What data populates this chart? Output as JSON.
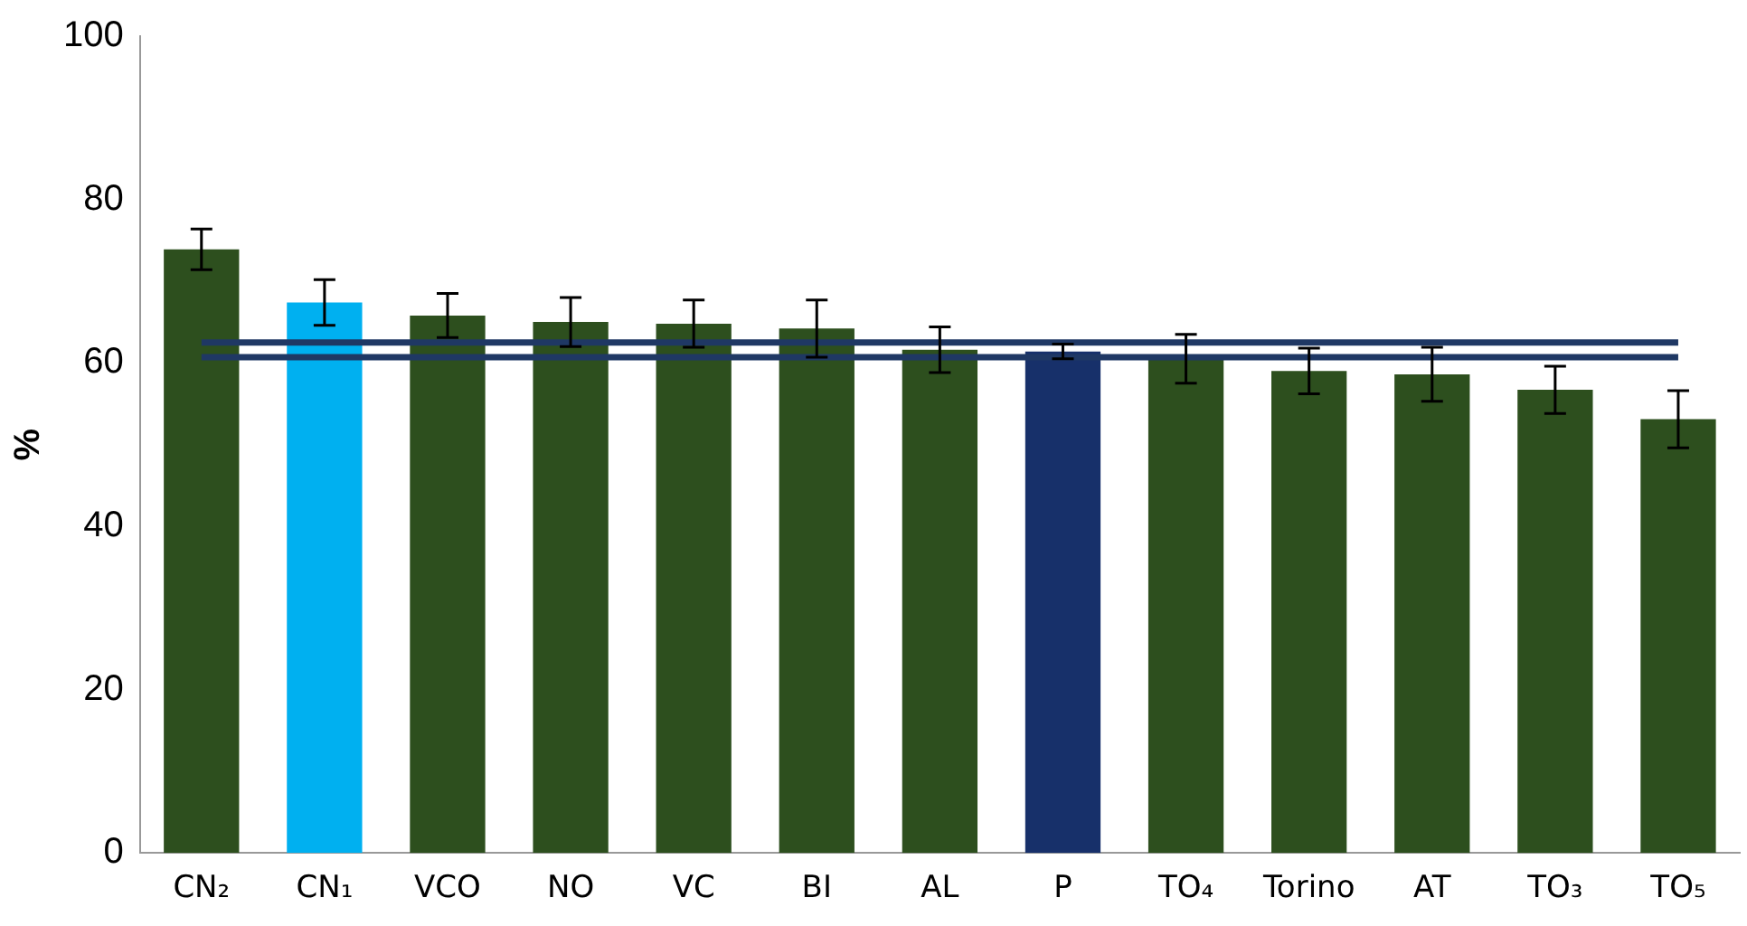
{
  "chart_data": {
    "type": "bar",
    "ylabel": "%",
    "categories": [
      "CN₂",
      "CN₁",
      "VCO",
      "NO",
      "VC",
      "BI",
      "AL",
      "P",
      "TO₄",
      "Torino",
      "AT",
      "TO₃",
      "TO₅"
    ],
    "values": [
      73.9,
      67.4,
      65.8,
      65.0,
      64.8,
      64.2,
      61.6,
      61.4,
      60.5,
      59.0,
      58.6,
      56.7,
      53.1
    ],
    "errors": [
      2.5,
      2.8,
      2.7,
      3.0,
      2.9,
      3.5,
      2.8,
      0.9,
      3.0,
      2.8,
      3.3,
      2.9,
      3.5
    ],
    "colors": [
      "#2d4f1e",
      "#00b0f0",
      "#2d4f1e",
      "#2d4f1e",
      "#2d4f1e",
      "#2d4f1e",
      "#2d4f1e",
      "#17306a",
      "#2d4f1e",
      "#2d4f1e",
      "#2d4f1e",
      "#2d4f1e",
      "#2d4f1e"
    ],
    "ylim": [
      0,
      100
    ],
    "yticks": [
      0,
      20,
      40,
      60,
      80,
      100
    ],
    "grid": false,
    "legend": false,
    "ref_lines": [
      {
        "axis": "y",
        "value": 62.5,
        "color": "#1f3864"
      },
      {
        "axis": "y",
        "value": 60.7,
        "color": "#1f3864"
      }
    ]
  }
}
